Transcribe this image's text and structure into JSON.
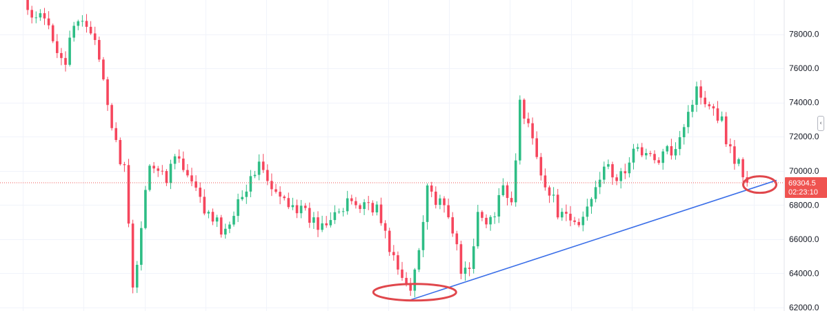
{
  "chart_data": {
    "type": "candlestick",
    "title": "",
    "xlabel": "",
    "ylabel": "",
    "ylim": [
      61800,
      80000
    ],
    "y_ticks": [
      62000,
      64000,
      66000,
      68000,
      70000,
      72000,
      74000,
      76000,
      78000
    ],
    "y_tick_labels": [
      "62000.0",
      "64000.0",
      "66000.0",
      "68000.0",
      "70000.0",
      "72000.0",
      "74000.0",
      "76000.0",
      "78000.0"
    ],
    "grid": true,
    "colors": {
      "up": "#26a69a",
      "down": "#ef5350",
      "up_bright": "#2ebd85",
      "down_bright": "#f6465d",
      "trendline": "#3b6fe8",
      "circle": "#e0474c",
      "grid": "#f0f3fa",
      "price_line": "#ef5350"
    },
    "series_anchors": [
      [
        0,
        80200
      ],
      [
        2,
        78600
      ],
      [
        4,
        79000
      ],
      [
        6,
        78500
      ],
      [
        8,
        77300
      ],
      [
        10,
        76400
      ],
      [
        12,
        78300
      ],
      [
        14,
        78900
      ],
      [
        16,
        78400
      ],
      [
        18,
        76200
      ],
      [
        20,
        73900
      ],
      [
        22,
        71500
      ],
      [
        24,
        70100
      ],
      [
        26,
        62900
      ],
      [
        28,
        66800
      ],
      [
        30,
        70700
      ],
      [
        32,
        70000
      ],
      [
        34,
        69500
      ],
      [
        36,
        71300
      ],
      [
        38,
        70000
      ],
      [
        40,
        69200
      ],
      [
        42,
        68200
      ],
      [
        44,
        67300
      ],
      [
        46,
        66900
      ],
      [
        48,
        66300
      ],
      [
        50,
        67800
      ],
      [
        52,
        68900
      ],
      [
        54,
        69300
      ],
      [
        56,
        70700
      ],
      [
        58,
        69200
      ],
      [
        60,
        68500
      ],
      [
        62,
        68300
      ],
      [
        64,
        68200
      ],
      [
        66,
        67600
      ],
      [
        68,
        67200
      ],
      [
        70,
        66800
      ],
      [
        72,
        67200
      ],
      [
        74,
        67900
      ],
      [
        76,
        67600
      ],
      [
        78,
        68300
      ],
      [
        80,
        67900
      ],
      [
        82,
        68200
      ],
      [
        84,
        67800
      ],
      [
        86,
        66200
      ],
      [
        88,
        64900
      ],
      [
        90,
        63500
      ],
      [
        92,
        63000
      ],
      [
        94,
        65600
      ],
      [
        96,
        69300
      ],
      [
        98,
        68200
      ],
      [
        100,
        67700
      ],
      [
        102,
        66700
      ],
      [
        104,
        63900
      ],
      [
        106,
        64600
      ],
      [
        108,
        67300
      ],
      [
        110,
        66900
      ],
      [
        112,
        67200
      ],
      [
        114,
        69300
      ],
      [
        116,
        68200
      ],
      [
        118,
        73800
      ],
      [
        120,
        72600
      ],
      [
        122,
        71200
      ],
      [
        124,
        69000
      ],
      [
        126,
        68200
      ],
      [
        128,
        67200
      ],
      [
        130,
        67000
      ],
      [
        132,
        66800
      ],
      [
        134,
        67900
      ],
      [
        136,
        69300
      ],
      [
        138,
        70400
      ],
      [
        140,
        69500
      ],
      [
        142,
        69800
      ],
      [
        144,
        70300
      ],
      [
        146,
        71600
      ],
      [
        148,
        71000
      ],
      [
        150,
        70500
      ],
      [
        152,
        70900
      ],
      [
        154,
        71200
      ],
      [
        156,
        72200
      ],
      [
        158,
        73500
      ],
      [
        160,
        74700
      ],
      [
        162,
        74300
      ],
      [
        164,
        73800
      ],
      [
        166,
        72900
      ],
      [
        168,
        71100
      ],
      [
        170,
        70500
      ],
      [
        172,
        69305
      ]
    ],
    "bars": 173,
    "seed": 42,
    "last_price": "69304.5",
    "countdown": "02:23:10",
    "trendline": {
      "start": {
        "bar": 92,
        "price": 62450
      },
      "end": {
        "bar": 179,
        "price": 69450
      }
    },
    "annotations": [
      {
        "shape": "ellipse",
        "center_bar": 93,
        "center_price": 62900
      },
      {
        "shape": "ellipse",
        "center_bar": 175,
        "center_price": 69200
      }
    ]
  },
  "toolbar": {
    "collapse_icon": "chevron-left-icon",
    "collapse_glyph": "‹"
  }
}
